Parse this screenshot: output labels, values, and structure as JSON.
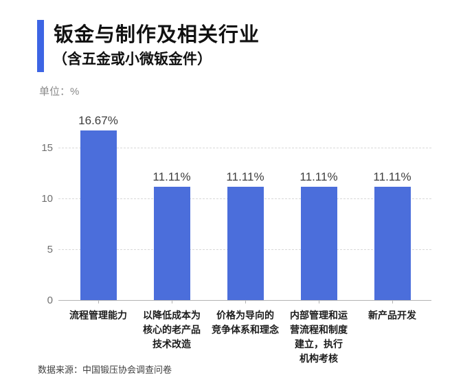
{
  "header": {
    "title": "钣金与制作及相关行业",
    "subtitle": "（含五金或小微钣金件）",
    "unit": "单位：%"
  },
  "footer": {
    "source": "数据来源：中国锻压协会调查问卷"
  },
  "colors": {
    "bar": "#4b6edb",
    "accent": "#3d65e4"
  },
  "chart_data": {
    "type": "bar",
    "title": "钣金与制作及相关行业",
    "subtitle": "（含五金或小微钣金件）",
    "unit_label": "单位：%",
    "categories": [
      "流程管理能力",
      "以降低成本为\n核心的老产品\n技术改造",
      "价格为导向的\n竞争体系和理念",
      "内部管理和运\n营流程和制度\n建立，执行\n机构考核",
      "新产品开发"
    ],
    "values": [
      16.67,
      11.11,
      11.11,
      11.11,
      11.11
    ],
    "value_labels": [
      "16.67%",
      "11.11%",
      "11.11%",
      "11.11%",
      "11.11%"
    ],
    "xlabel": "",
    "ylabel": "",
    "yticks": [
      0,
      5,
      10,
      15
    ],
    "ylim": [
      0,
      18
    ],
    "grid": "horizontal-dashed",
    "legend": "none",
    "bar_color": "#4b6edb",
    "source": "数据来源：中国锻压协会调查问卷"
  }
}
